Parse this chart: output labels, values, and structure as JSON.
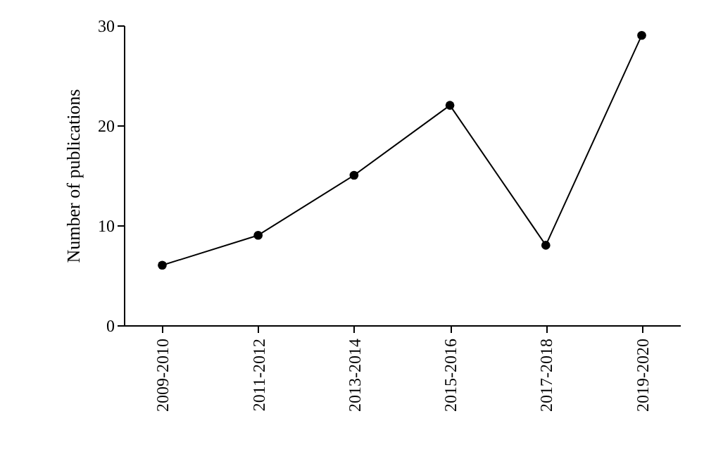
{
  "chart_data": {
    "type": "line",
    "ylabel": "Number of publications",
    "categories": [
      "2009-2010",
      "2011-2012",
      "2013-2014",
      "2015-2016",
      "2017-2018",
      "2019-2020"
    ],
    "series": [
      {
        "color": "#000000",
        "values": [
          6,
          9,
          15,
          22,
          8,
          29
        ]
      }
    ],
    "ylim": [
      0,
      30
    ],
    "yticks": [
      0,
      10,
      20,
      30
    ],
    "grid": false,
    "marker": "circle",
    "line_style": "solid"
  }
}
